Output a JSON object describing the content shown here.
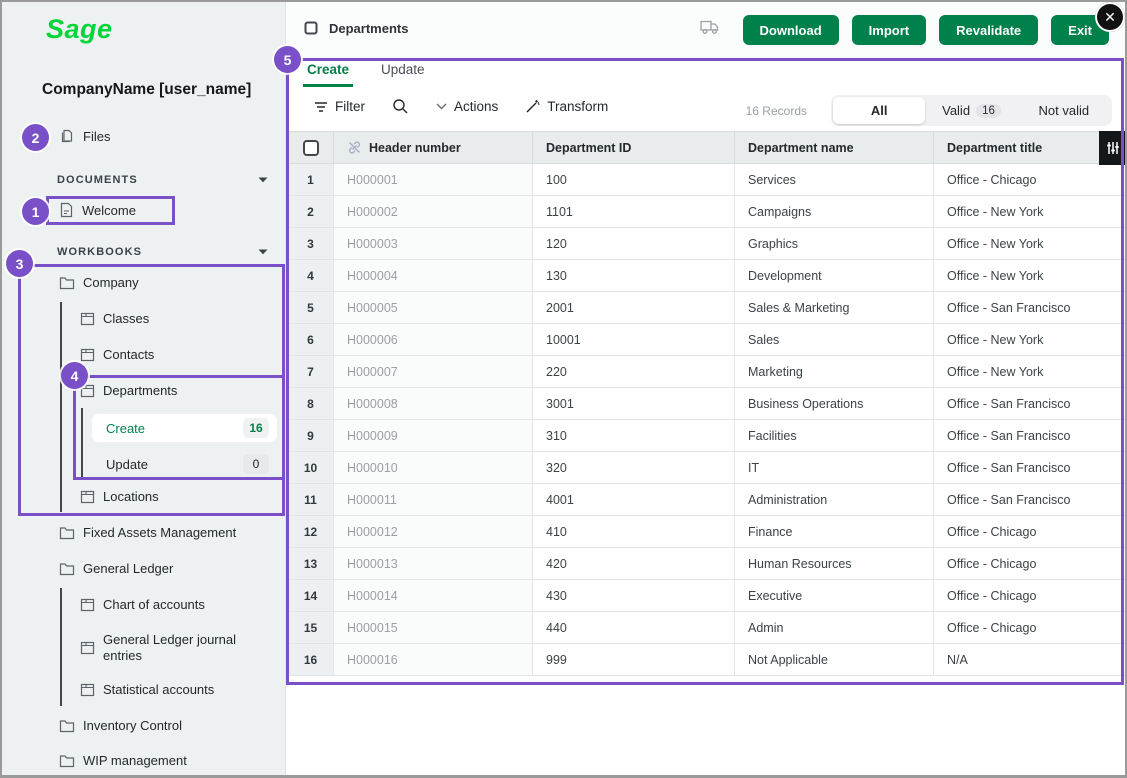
{
  "colors": {
    "brand_green": "#00D639",
    "button_green": "#00814C",
    "accent_purple": "#7A50C8",
    "tab_green": "#007E45"
  },
  "window": {
    "close_icon": "✕"
  },
  "sidebar": {
    "logo_text": "Sage",
    "company_name": "CompanyName [user_name]",
    "files_label": "Files",
    "documents_section": "DOCUMENTS",
    "welcome_label": "Welcome",
    "workbooks_section": "WORKBOOKS",
    "tree": [
      {
        "label": "Company",
        "type": "folder"
      },
      {
        "label": "Classes",
        "type": "sheet"
      },
      {
        "label": "Contacts",
        "type": "sheet"
      },
      {
        "label": "Departments",
        "type": "sheet"
      },
      {
        "label": "Create",
        "type": "leaf",
        "badge": "16",
        "active": true
      },
      {
        "label": "Update",
        "type": "leaf",
        "badge": "0"
      },
      {
        "label": "Locations",
        "type": "sheet"
      },
      {
        "label": "Fixed Assets Management",
        "type": "folder"
      },
      {
        "label": "General Ledger",
        "type": "folder"
      },
      {
        "label": "Chart of accounts",
        "type": "sheet"
      },
      {
        "label": "General Ledger journal entries",
        "type": "sheet"
      },
      {
        "label": "Statistical accounts",
        "type": "sheet"
      },
      {
        "label": "Inventory Control",
        "type": "folder"
      },
      {
        "label": "WIP management",
        "type": "folder"
      }
    ]
  },
  "header": {
    "title": "Departments",
    "buttons": {
      "download": "Download",
      "import": "Import",
      "revalidate": "Revalidate",
      "exit": "Exit"
    }
  },
  "tabs": {
    "create": "Create",
    "update": "Update"
  },
  "toolbar": {
    "filter_label": "Filter",
    "actions_label": "Actions",
    "transform_label": "Transform",
    "records_label": "16 Records",
    "segments": {
      "all": "All",
      "valid": "Valid",
      "valid_count": "16",
      "not_valid": "Not valid"
    }
  },
  "table": {
    "columns": [
      "Header number",
      "Department ID",
      "Department name",
      "Department title"
    ],
    "rows": [
      {
        "num": "1",
        "header_number": "H000001",
        "department_id": "100",
        "department_name": "Services",
        "department_title": "Office - Chicago"
      },
      {
        "num": "2",
        "header_number": "H000002",
        "department_id": "1101",
        "department_name": "Campaigns",
        "department_title": "Office - New York"
      },
      {
        "num": "3",
        "header_number": "H000003",
        "department_id": "120",
        "department_name": "Graphics",
        "department_title": "Office - New York"
      },
      {
        "num": "4",
        "header_number": "H000004",
        "department_id": "130",
        "department_name": "Development",
        "department_title": "Office - New York"
      },
      {
        "num": "5",
        "header_number": "H000005",
        "department_id": "2001",
        "department_name": "Sales & Marketing",
        "department_title": "Office - San Francisco"
      },
      {
        "num": "6",
        "header_number": "H000006",
        "department_id": "10001",
        "department_name": "Sales",
        "department_title": "Office - New York"
      },
      {
        "num": "7",
        "header_number": "H000007",
        "department_id": "220",
        "department_name": "Marketing",
        "department_title": "Office - New York"
      },
      {
        "num": "8",
        "header_number": "H000008",
        "department_id": "3001",
        "department_name": "Business Operations",
        "department_title": "Office - San Francisco"
      },
      {
        "num": "9",
        "header_number": "H000009",
        "department_id": "310",
        "department_name": "Facilities",
        "department_title": "Office - San Francisco"
      },
      {
        "num": "10",
        "header_number": "H000010",
        "department_id": "320",
        "department_name": "IT",
        "department_title": "Office - San Francisco"
      },
      {
        "num": "11",
        "header_number": "H000011",
        "department_id": "4001",
        "department_name": "Administration",
        "department_title": "Office - San Francisco"
      },
      {
        "num": "12",
        "header_number": "H000012",
        "department_id": "410",
        "department_name": "Finance",
        "department_title": "Office - Chicago"
      },
      {
        "num": "13",
        "header_number": "H000013",
        "department_id": "420",
        "department_name": "Human Resources",
        "department_title": "Office - Chicago"
      },
      {
        "num": "14",
        "header_number": "H000014",
        "department_id": "430",
        "department_name": "Executive",
        "department_title": "Office - Chicago"
      },
      {
        "num": "15",
        "header_number": "H000015",
        "department_id": "440",
        "department_name": "Admin",
        "department_title": "Office - Chicago"
      },
      {
        "num": "16",
        "header_number": "H000016",
        "department_id": "999",
        "department_name": "Not Applicable",
        "department_title": "N/A"
      }
    ]
  },
  "callouts": {
    "c1": "1",
    "c2": "2",
    "c3": "3",
    "c4": "4",
    "c5": "5"
  }
}
